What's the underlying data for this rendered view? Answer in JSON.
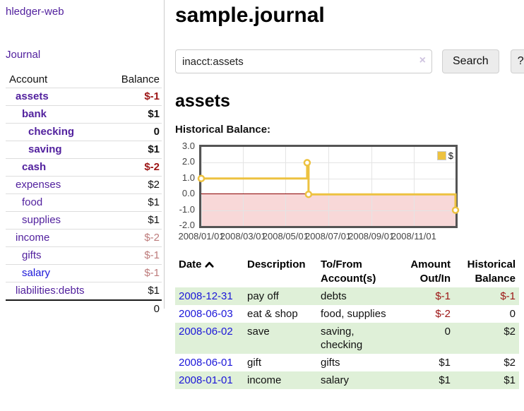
{
  "app": {
    "brand": "hledger-web",
    "nav_journal": "Journal"
  },
  "sidebar": {
    "header": {
      "account": "Account",
      "balance": "Balance"
    },
    "accounts": [
      {
        "name": "assets",
        "depth": 1,
        "matched": true,
        "balance": "$-1",
        "balance_tone": "negative"
      },
      {
        "name": "bank",
        "depth": 2,
        "matched": true,
        "balance": "$1",
        "balance_tone": "normal"
      },
      {
        "name": "checking",
        "depth": 3,
        "matched": true,
        "balance": "0",
        "balance_tone": "normal"
      },
      {
        "name": "saving",
        "depth": 3,
        "matched": true,
        "balance": "$1",
        "balance_tone": "normal"
      },
      {
        "name": "cash",
        "depth": 2,
        "matched": true,
        "balance": "$-2",
        "balance_tone": "negative"
      },
      {
        "name": "expenses",
        "depth": 1,
        "matched": false,
        "balance": "$2",
        "balance_tone": "normal"
      },
      {
        "name": "food",
        "depth": 2,
        "matched": false,
        "balance": "$1",
        "balance_tone": "normal"
      },
      {
        "name": "supplies",
        "depth": 2,
        "matched": false,
        "balance": "$1",
        "balance_tone": "normal"
      },
      {
        "name": "income",
        "depth": 1,
        "matched": false,
        "balance": "$-2",
        "balance_tone": "muted-negative"
      },
      {
        "name": "gifts",
        "depth": 2,
        "matched": false,
        "balance": "$-1",
        "balance_tone": "muted-negative"
      },
      {
        "name": "salary",
        "depth": 2,
        "matched": false,
        "balance": "$-1",
        "balance_tone": "muted-negative",
        "link_tone": "unvisited"
      },
      {
        "name": "liabilities:debts",
        "depth": 1,
        "matched": false,
        "balance": "$1",
        "balance_tone": "normal"
      }
    ],
    "total": "0"
  },
  "main": {
    "title": "sample.journal",
    "search": {
      "value": "inacct:assets",
      "clear_icon": "×",
      "button_label": "Search",
      "help_label": "?"
    },
    "account_heading": "assets"
  },
  "chart_data": {
    "type": "line",
    "step": true,
    "title": "Historical Balance:",
    "series": [
      {
        "name": "$",
        "color": "#edc240",
        "points": [
          [
            "2008-01-01",
            1
          ],
          [
            "2008-06-01",
            2
          ],
          [
            "2008-06-03",
            0
          ],
          [
            "2008-12-31",
            -1
          ]
        ]
      }
    ],
    "x_ticks": [
      {
        "label": "2008/01/01",
        "date": "2008-01-01"
      },
      {
        "label": "2008/03/01",
        "date": "2008-03-01"
      },
      {
        "label": "2008/05/01",
        "date": "2008-05-01"
      },
      {
        "label": "2008/07/01",
        "date": "2008-07-01"
      },
      {
        "label": "2008/09/01",
        "date": "2008-09-01"
      },
      {
        "label": "2008/11/01",
        "date": "2008-11-01"
      }
    ],
    "y_ticks": [
      3.0,
      2.0,
      1.0,
      0.0,
      -1.0,
      -2.0
    ],
    "xrange": [
      "2008-01-01",
      "2008-12-31"
    ],
    "ylim": [
      -2,
      3
    ],
    "grid": true,
    "legend_position": "top-right",
    "legend_label": "$",
    "series_color": "#edc240",
    "negative_region_color": "#f8d8d8",
    "zero_line_color": "#8b0000"
  },
  "register": {
    "headers": [
      {
        "label": "Date",
        "sorted": "asc"
      },
      {
        "label": "Description"
      },
      {
        "label": "To/From Account(s)"
      },
      {
        "label": "Amount Out/In",
        "align": "right"
      },
      {
        "label": "Historical Balance",
        "align": "right"
      }
    ],
    "rows": [
      {
        "date": "2008-12-31",
        "description": "pay off",
        "accounts": "debts",
        "amount": "$-1",
        "amount_tone": "negative",
        "balance": "$-1",
        "balance_tone": "negative"
      },
      {
        "date": "2008-06-03",
        "description": "eat & shop",
        "accounts": "food, supplies",
        "amount": "$-2",
        "amount_tone": "negative",
        "balance": "0",
        "balance_tone": "normal"
      },
      {
        "date": "2008-06-02",
        "description": "save",
        "accounts": "saving, checking",
        "amount": "0",
        "amount_tone": "normal",
        "balance": "$2",
        "balance_tone": "normal"
      },
      {
        "date": "2008-06-01",
        "description": "gift",
        "accounts": "gifts",
        "amount": "$1",
        "amount_tone": "normal",
        "balance": "$2",
        "balance_tone": "normal"
      },
      {
        "date": "2008-01-01",
        "description": "income",
        "accounts": "salary",
        "amount": "$1",
        "amount_tone": "normal",
        "balance": "$1",
        "balance_tone": "normal"
      }
    ]
  }
}
